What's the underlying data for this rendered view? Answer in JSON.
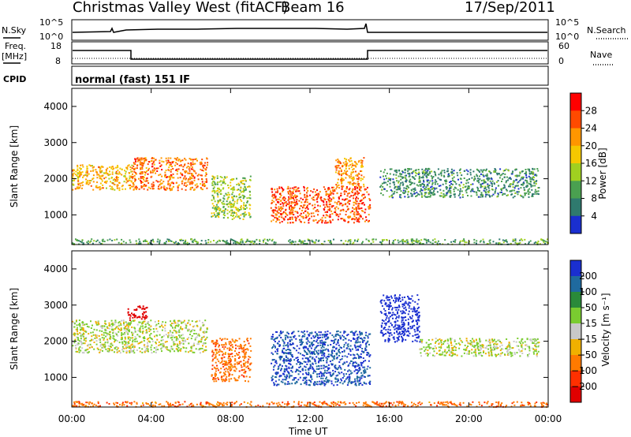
{
  "header": {
    "title": "Christmas Valley West (fitACF)",
    "beam": "Beam 16",
    "date": "17/Sep/2011"
  },
  "strips": {
    "nsky": {
      "left_label": "N.Sky",
      "right_label": "N.Search",
      "left_ticks": [
        "10^5",
        "10^0"
      ],
      "right_ticks": [
        "10^5",
        "10^0"
      ]
    },
    "freq": {
      "left_label_1": "Freq.",
      "left_label_2": "[MHz]",
      "right_label": "Nave",
      "left_ticks": [
        "18",
        "8"
      ],
      "right_ticks": [
        "60",
        "0"
      ]
    },
    "cpid": {
      "label": "CPID",
      "text": "normal (fast) 151 IF"
    }
  },
  "axes": {
    "y_label": "Slant Range [km]",
    "y_ticks": [
      "4000",
      "3000",
      "2000",
      "1000"
    ],
    "x_ticks": [
      "00:00",
      "04:00",
      "08:00",
      "12:00",
      "16:00",
      "20:00",
      "00:00"
    ],
    "x_label": "Time UT"
  },
  "power_scale": {
    "label": "Power [dB]",
    "ticks": [
      "28",
      "24",
      "20",
      "16",
      "12",
      "8",
      "4"
    ],
    "colors": [
      "#ff0000",
      "#ff4a00",
      "#ff9600",
      "#f5c800",
      "#a0d020",
      "#4aa050",
      "#2f7a6e",
      "#1a2fd0"
    ]
  },
  "velocity_scale": {
    "label": "Velocity [m s⁻¹]",
    "ticks": [
      "200",
      "100",
      "50",
      "15",
      "−15",
      "−50",
      "−100",
      "−200"
    ],
    "colors": [
      "#1a2fd0",
      "#1f6a9f",
      "#2a8a3a",
      "#7acc30",
      "#c8c8c8",
      "#f0b000",
      "#ff7a00",
      "#ff3000",
      "#e00000"
    ]
  },
  "chart_data": [
    {
      "type": "heatmap",
      "title": "Power",
      "xlabel": "Time UT",
      "ylabel": "Slant Range [km]",
      "xlim": [
        "00:00",
        "24:00"
      ],
      "ylim": [
        180,
        4500
      ],
      "colorbar": {
        "label": "Power [dB]",
        "range": [
          0,
          32
        ]
      },
      "features": [
        {
          "t_start": 0.0,
          "t_end": 3.0,
          "range_km": [
            1700,
            2400
          ],
          "level_db": 20
        },
        {
          "t_start": 3.0,
          "t_end": 6.8,
          "range_km": [
            1700,
            2600
          ],
          "level_db": 24
        },
        {
          "t_start": 7.0,
          "t_end": 9.0,
          "range_km": [
            900,
            2100
          ],
          "level_db": 14
        },
        {
          "t_start": 10.0,
          "t_end": 15.0,
          "range_km": [
            800,
            1800
          ],
          "level_db": 26
        },
        {
          "t_start": 13.2,
          "t_end": 14.7,
          "range_km": [
            1800,
            2600
          ],
          "level_db": 22
        },
        {
          "t_start": 15.5,
          "t_end": 23.5,
          "range_km": [
            1500,
            2300
          ],
          "level_db": 8
        },
        {
          "t_start": 0.0,
          "t_end": 24.0,
          "range_km": [
            200,
            350
          ],
          "level_db": 10
        }
      ]
    },
    {
      "type": "heatmap",
      "title": "Velocity",
      "xlabel": "Time UT",
      "ylabel": "Slant Range [km]",
      "xlim": [
        "00:00",
        "24:00"
      ],
      "ylim": [
        180,
        4500
      ],
      "colorbar": {
        "label": "Velocity [m s⁻¹]",
        "range": [
          -200,
          200
        ]
      },
      "features": [
        {
          "t_start": 0.0,
          "t_end": 6.8,
          "range_km": [
            1700,
            2600
          ],
          "velocity": 0
        },
        {
          "t_start": 2.8,
          "t_end": 3.8,
          "range_km": [
            2600,
            3000
          ],
          "velocity": -200
        },
        {
          "t_start": 7.0,
          "t_end": 9.0,
          "range_km": [
            900,
            2100
          ],
          "velocity": -60
        },
        {
          "t_start": 10.0,
          "t_end": 15.0,
          "range_km": [
            800,
            2300
          ],
          "velocity": 150
        },
        {
          "t_start": 15.5,
          "t_end": 17.5,
          "range_km": [
            2000,
            3300
          ],
          "velocity": 200
        },
        {
          "t_start": 17.5,
          "t_end": 23.5,
          "range_km": [
            1600,
            2100
          ],
          "velocity": 0
        },
        {
          "t_start": 0.0,
          "t_end": 24.0,
          "range_km": [
            200,
            350
          ],
          "velocity": -60
        }
      ]
    }
  ]
}
